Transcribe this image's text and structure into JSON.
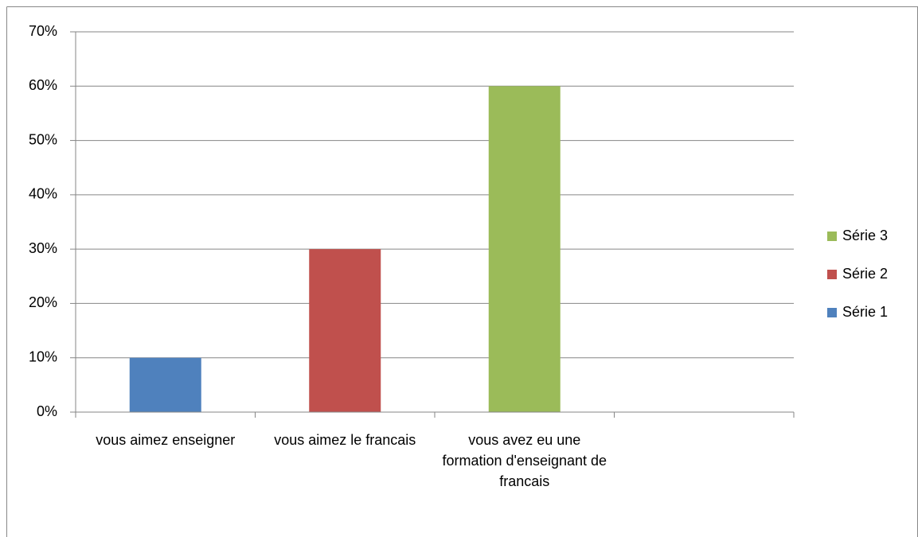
{
  "chart_data": {
    "type": "bar",
    "categories": [
      "vous aimez enseigner",
      "vous aimez le francais",
      "vous avez eu une formation d'enseignant de francais",
      null
    ],
    "series": [
      {
        "name": "Série 1",
        "color": "#4f81bd",
        "values": [
          10,
          null,
          null,
          null
        ]
      },
      {
        "name": "Série 2",
        "color": "#c0504d",
        "values": [
          null,
          30,
          null,
          null
        ]
      },
      {
        "name": "Série 3",
        "color": "#9bbb59",
        "values": [
          null,
          null,
          60,
          null
        ]
      }
    ],
    "ylim": [
      0,
      70
    ],
    "yticks": [
      {
        "value": 0,
        "label": "0%"
      },
      {
        "value": 10,
        "label": "10%"
      },
      {
        "value": 20,
        "label": "20%"
      },
      {
        "value": 30,
        "label": "30%"
      },
      {
        "value": 40,
        "label": "40%"
      },
      {
        "value": 50,
        "label": "50%"
      },
      {
        "value": 60,
        "label": "60%"
      },
      {
        "value": 70,
        "label": "70%"
      }
    ],
    "grid": true,
    "legend": "right"
  }
}
